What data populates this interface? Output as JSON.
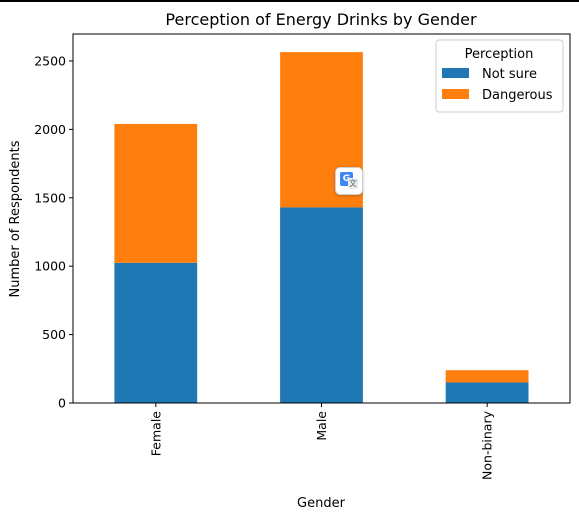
{
  "chart_data": {
    "type": "bar",
    "stacked": true,
    "title": "Perception of Energy Drinks by Gender",
    "xlabel": "Gender",
    "ylabel": "Number of Respondents",
    "categories": [
      "Female",
      "Male",
      "Non-binary"
    ],
    "series": [
      {
        "name": "Not sure",
        "values": [
          1025,
          1430,
          150
        ],
        "color": "#1f77b4"
      },
      {
        "name": "Dangerous",
        "values": [
          1015,
          1135,
          90
        ],
        "color": "#ff7f0e"
      }
    ],
    "ylim": [
      0,
      2697
    ],
    "yticks": [
      0,
      500,
      1000,
      1500,
      2000,
      2500
    ],
    "legend": {
      "title": "Perception",
      "position": "top-right"
    },
    "grid": false
  },
  "overlay": {
    "translate_badge": {
      "icon": "google-translate-icon",
      "glyph_g": "G",
      "glyph_t": "文"
    }
  }
}
